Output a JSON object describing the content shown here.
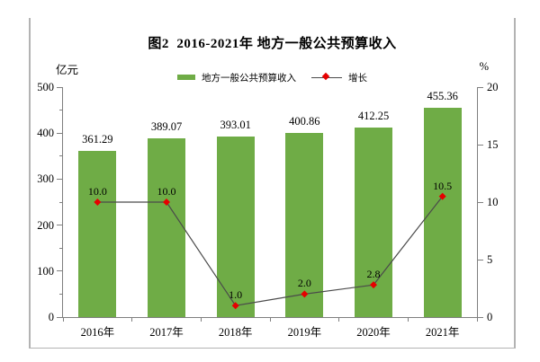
{
  "page": {
    "title": "图2  2016-2021年 地方一般公共预算收入",
    "left_axis_unit": "亿元",
    "right_axis_unit": "%"
  },
  "legend": {
    "bar_label": "地方一般公共预算收入",
    "line_label": "增长"
  },
  "colors": {
    "bar": "#6FAC46",
    "marker": "#E60000",
    "line": "#4A4A4A",
    "axis": "#7F7F7F",
    "frame_border": "#B3B3B3",
    "text": "#000000"
  },
  "chart_data": {
    "type": "bar",
    "subtype": "bar+line-combo",
    "title": "图2 2016-2021年 地方一般公共预算收入",
    "categories": [
      "2016年",
      "2017年",
      "2018年",
      "2019年",
      "2020年",
      "2021年"
    ],
    "series": [
      {
        "name": "地方一般公共预算收入",
        "type": "bar",
        "axis": "left",
        "values": [
          361.29,
          389.07,
          393.01,
          400.86,
          412.25,
          455.36
        ],
        "labels": [
          "361.29",
          "389.07",
          "393.01",
          "400.86",
          "412.25",
          "455.36"
        ],
        "color": "#6FAC46"
      },
      {
        "name": "增长",
        "type": "line",
        "axis": "right",
        "values": [
          10.0,
          10.0,
          1.0,
          2.0,
          2.8,
          10.5
        ],
        "labels": [
          "10.0",
          "10.0",
          "1.0",
          "2.0",
          "2.8",
          "10.5"
        ],
        "color": "#E60000"
      }
    ],
    "left_axis": {
      "unit": "亿元",
      "min": 0,
      "max": 500,
      "major_step": 100,
      "minor_step": 50,
      "ticks": [
        0,
        100,
        200,
        300,
        400,
        500
      ]
    },
    "right_axis": {
      "unit": "%",
      "min": 0,
      "max": 20,
      "major_step": 5,
      "ticks": [
        0,
        5,
        10,
        15,
        20
      ]
    },
    "grid": false,
    "legend_position": "top-center"
  }
}
